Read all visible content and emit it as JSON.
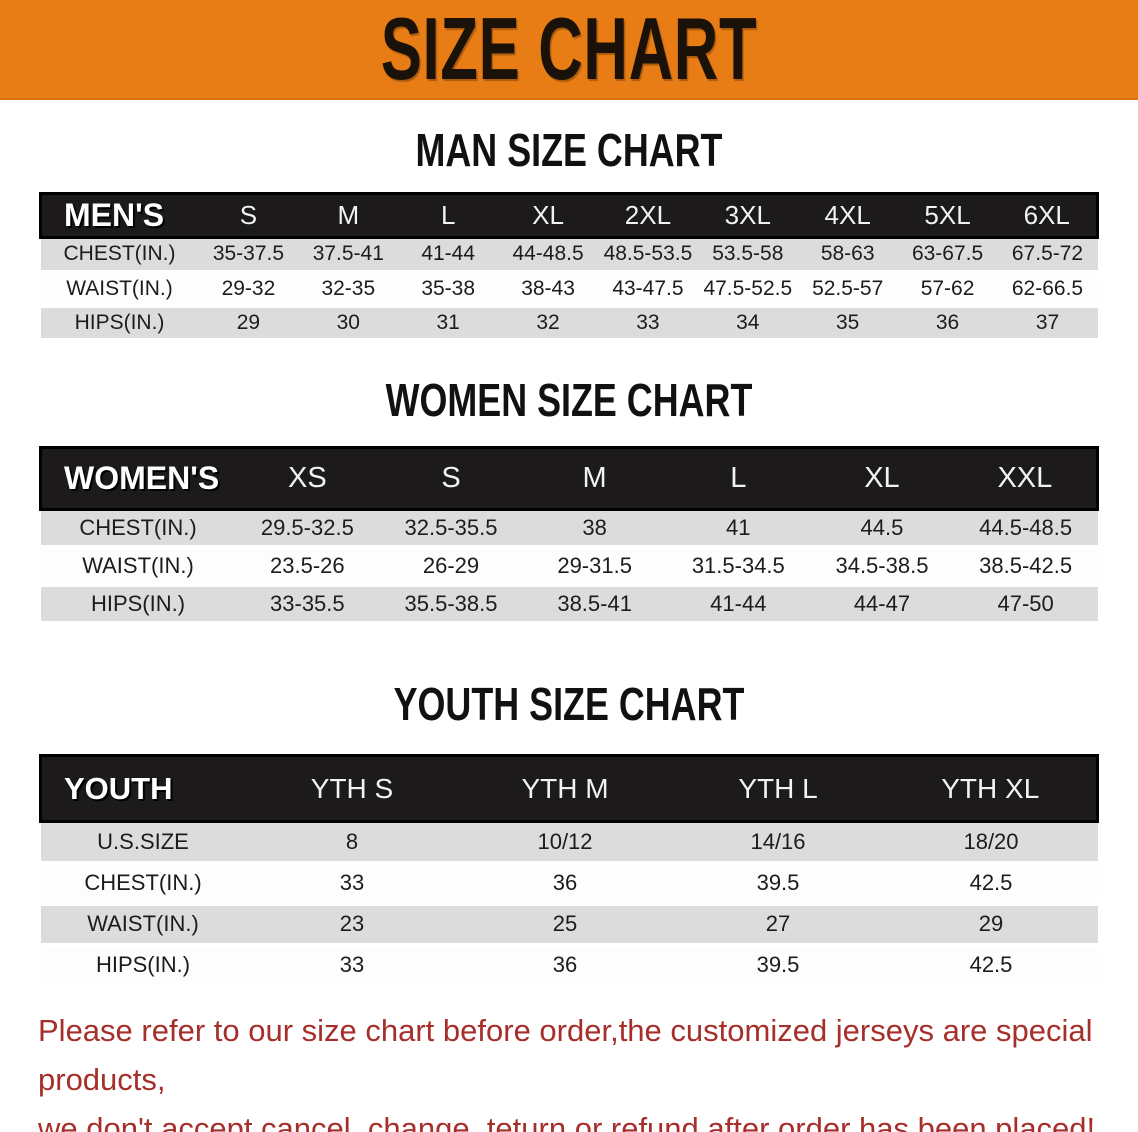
{
  "banner": {
    "title": "SIZE CHART",
    "bg_color": "#E87D15",
    "text_color": "#1a1208"
  },
  "sections": [
    {
      "heading": "MAN SIZE CHART",
      "table": {
        "corner_label": "MEN'S",
        "columns": [
          "S",
          "M",
          "L",
          "XL",
          "2XL",
          "3XL",
          "4XL",
          "5XL",
          "6XL"
        ],
        "rows": [
          {
            "label": "CHEST(IN.)",
            "values": [
              "35-37.5",
              "37.5-41",
              "41-44",
              "44-48.5",
              "48.5-53.5",
              "53.5-58",
              "58-63",
              "63-67.5",
              "67.5-72"
            ]
          },
          {
            "label": "WAIST(IN.)",
            "values": [
              "29-32",
              "32-35",
              "35-38",
              "38-43",
              "43-47.5",
              "47.5-52.5",
              "52.5-57",
              "57-62",
              "62-66.5"
            ]
          },
          {
            "label": "HIPS(IN.)",
            "values": [
              "29",
              "30",
              "31",
              "32",
              "33",
              "34",
              "35",
              "36",
              "37"
            ]
          }
        ]
      }
    },
    {
      "heading": "WOMEN SIZE CHART",
      "table": {
        "corner_label": "WOMEN'S",
        "columns": [
          "XS",
          "S",
          "M",
          "L",
          "XL",
          "XXL"
        ],
        "rows": [
          {
            "label": "CHEST(IN.)",
            "values": [
              "29.5-32.5",
              "32.5-35.5",
              "38",
              "41",
              "44.5",
              "44.5-48.5"
            ]
          },
          {
            "label": "WAIST(IN.)",
            "values": [
              "23.5-26",
              "26-29",
              "29-31.5",
              "31.5-34.5",
              "34.5-38.5",
              "38.5-42.5"
            ]
          },
          {
            "label": "HIPS(IN.)",
            "values": [
              "33-35.5",
              "35.5-38.5",
              "38.5-41",
              "41-44",
              "44-47",
              "47-50"
            ]
          }
        ]
      }
    },
    {
      "heading": "YOUTH SIZE CHART",
      "table": {
        "corner_label": "YOUTH",
        "columns": [
          "YTH S",
          "YTH M",
          "YTH L",
          "YTH XL"
        ],
        "rows": [
          {
            "label": "U.S.SIZE",
            "values": [
              "8",
              "10/12",
              "14/16",
              "18/20"
            ]
          },
          {
            "label": "CHEST(IN.)",
            "values": [
              "33",
              "36",
              "39.5",
              "42.5"
            ]
          },
          {
            "label": "WAIST(IN.)",
            "values": [
              "23",
              "25",
              "27",
              "29"
            ]
          },
          {
            "label": "HIPS(IN.)",
            "values": [
              "33",
              "36",
              "39.5",
              "42.5"
            ]
          }
        ]
      }
    }
  ],
  "disclaimer": {
    "line1": "Please refer to our size chart before order,the customized jerseys are special products,",
    "line2": "we don't accept cancel, change, teturn or refund after order has been placed!",
    "color": "#A62F2B"
  },
  "colors": {
    "banner_orange": "#E87D15",
    "table_header_black": "#1c1a1a",
    "row_gray": "#DCDCDC",
    "row_white": "#FDFDFD",
    "disclaimer_red": "#A62F2B"
  }
}
